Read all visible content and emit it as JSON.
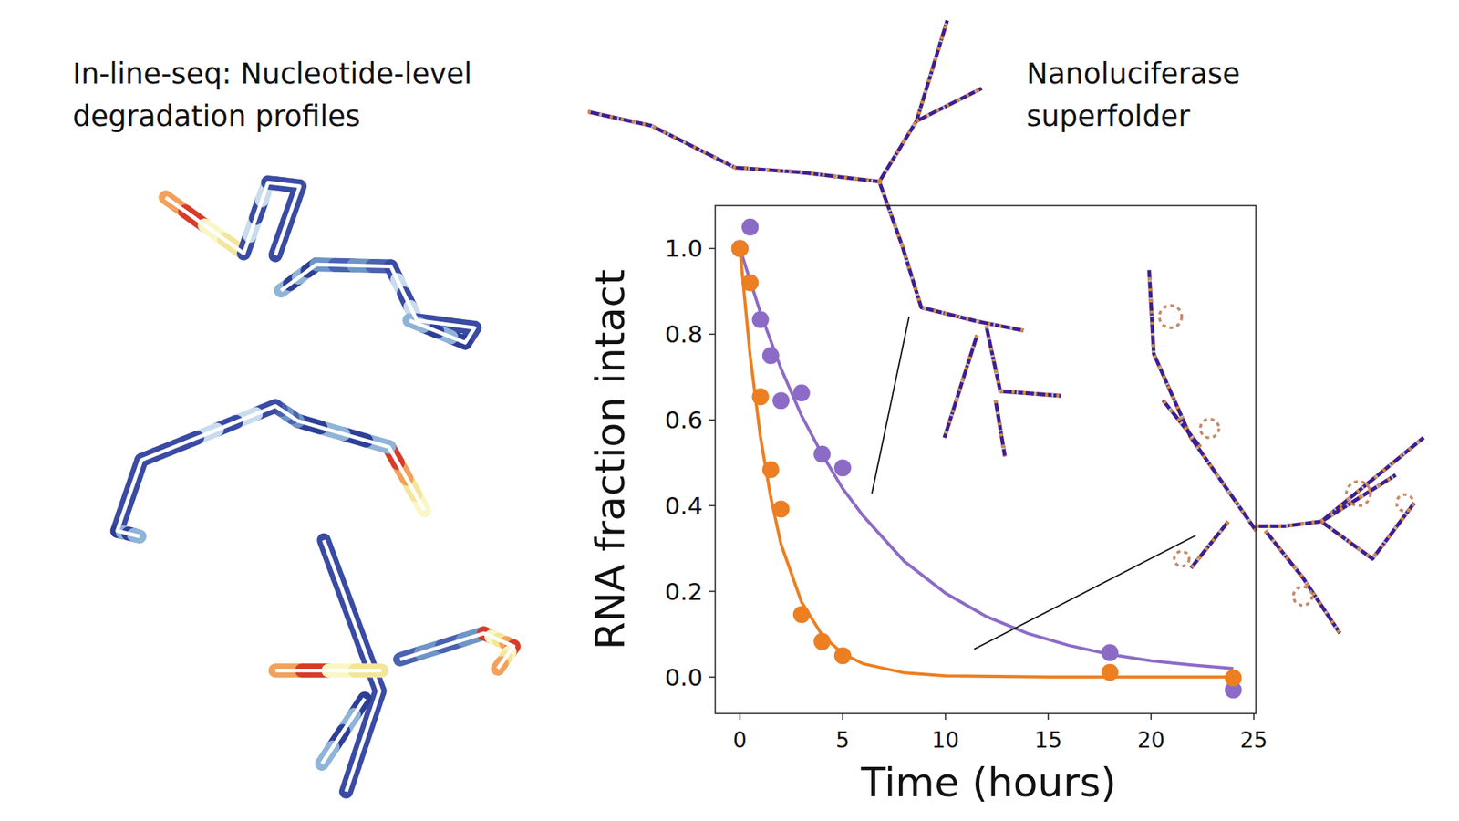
{
  "chart_data": {
    "type": "scatter",
    "annotations": [
      [
        "In-line-seq: Nucleotide-level",
        "degradation profiles"
      ],
      [
        "Nanoluciferase",
        "superfolder"
      ]
    ],
    "x_label": "Time (hours)",
    "y_label": "RNA fraction intact",
    "xlim": [
      -1.2,
      25.1
    ],
    "ylim": [
      -0.085,
      1.1
    ],
    "xticks": [
      0,
      5,
      10,
      15,
      20,
      25
    ],
    "yticks": [
      {
        "value": 0,
        "label": "0.0"
      },
      0.2,
      0.4,
      0.6,
      0.8,
      {
        "value": 1,
        "label": "1.0"
      }
    ],
    "grid": false,
    "series": [
      {
        "type": "scatter",
        "marker": "circle",
        "color": "#8c6bc6",
        "x": [
          0,
          0.5,
          1,
          1.5,
          2,
          3,
          4,
          5,
          18,
          24
        ],
        "values": [
          1.0,
          1.05,
          0.834,
          0.75,
          0.645,
          0.663,
          0.52,
          0.488,
          0.057,
          -0.03
        ]
      },
      {
        "type": "scatter",
        "marker": "circle",
        "color": "#ec7f22",
        "x": [
          0,
          0.5,
          1,
          1.5,
          2,
          3,
          4,
          5,
          18,
          24
        ],
        "values": [
          1.0,
          0.92,
          0.654,
          0.484,
          0.392,
          0.146,
          0.083,
          0.05,
          0.011,
          -0.002
        ]
      },
      {
        "type": "line",
        "line_style": "solid",
        "color": "#8c6bc6",
        "x": [
          0,
          1,
          2,
          3,
          4,
          5,
          6,
          8,
          10,
          12,
          14,
          16,
          18,
          20,
          22,
          24
        ],
        "values": [
          1.0,
          0.85,
          0.72,
          0.61,
          0.52,
          0.44,
          0.376,
          0.27,
          0.196,
          0.141,
          0.102,
          0.074,
          0.053,
          0.038,
          0.028,
          0.02
        ]
      },
      {
        "type": "line",
        "line_style": "solid",
        "color": "#ec7f22",
        "x": [
          0,
          0.5,
          1,
          1.5,
          2,
          3,
          4,
          5,
          6,
          8,
          10,
          15,
          20,
          24
        ],
        "values": [
          1.0,
          0.75,
          0.56,
          0.42,
          0.31,
          0.175,
          0.098,
          0.055,
          0.031,
          0.01,
          0.003,
          0,
          0,
          0
        ]
      }
    ]
  }
}
